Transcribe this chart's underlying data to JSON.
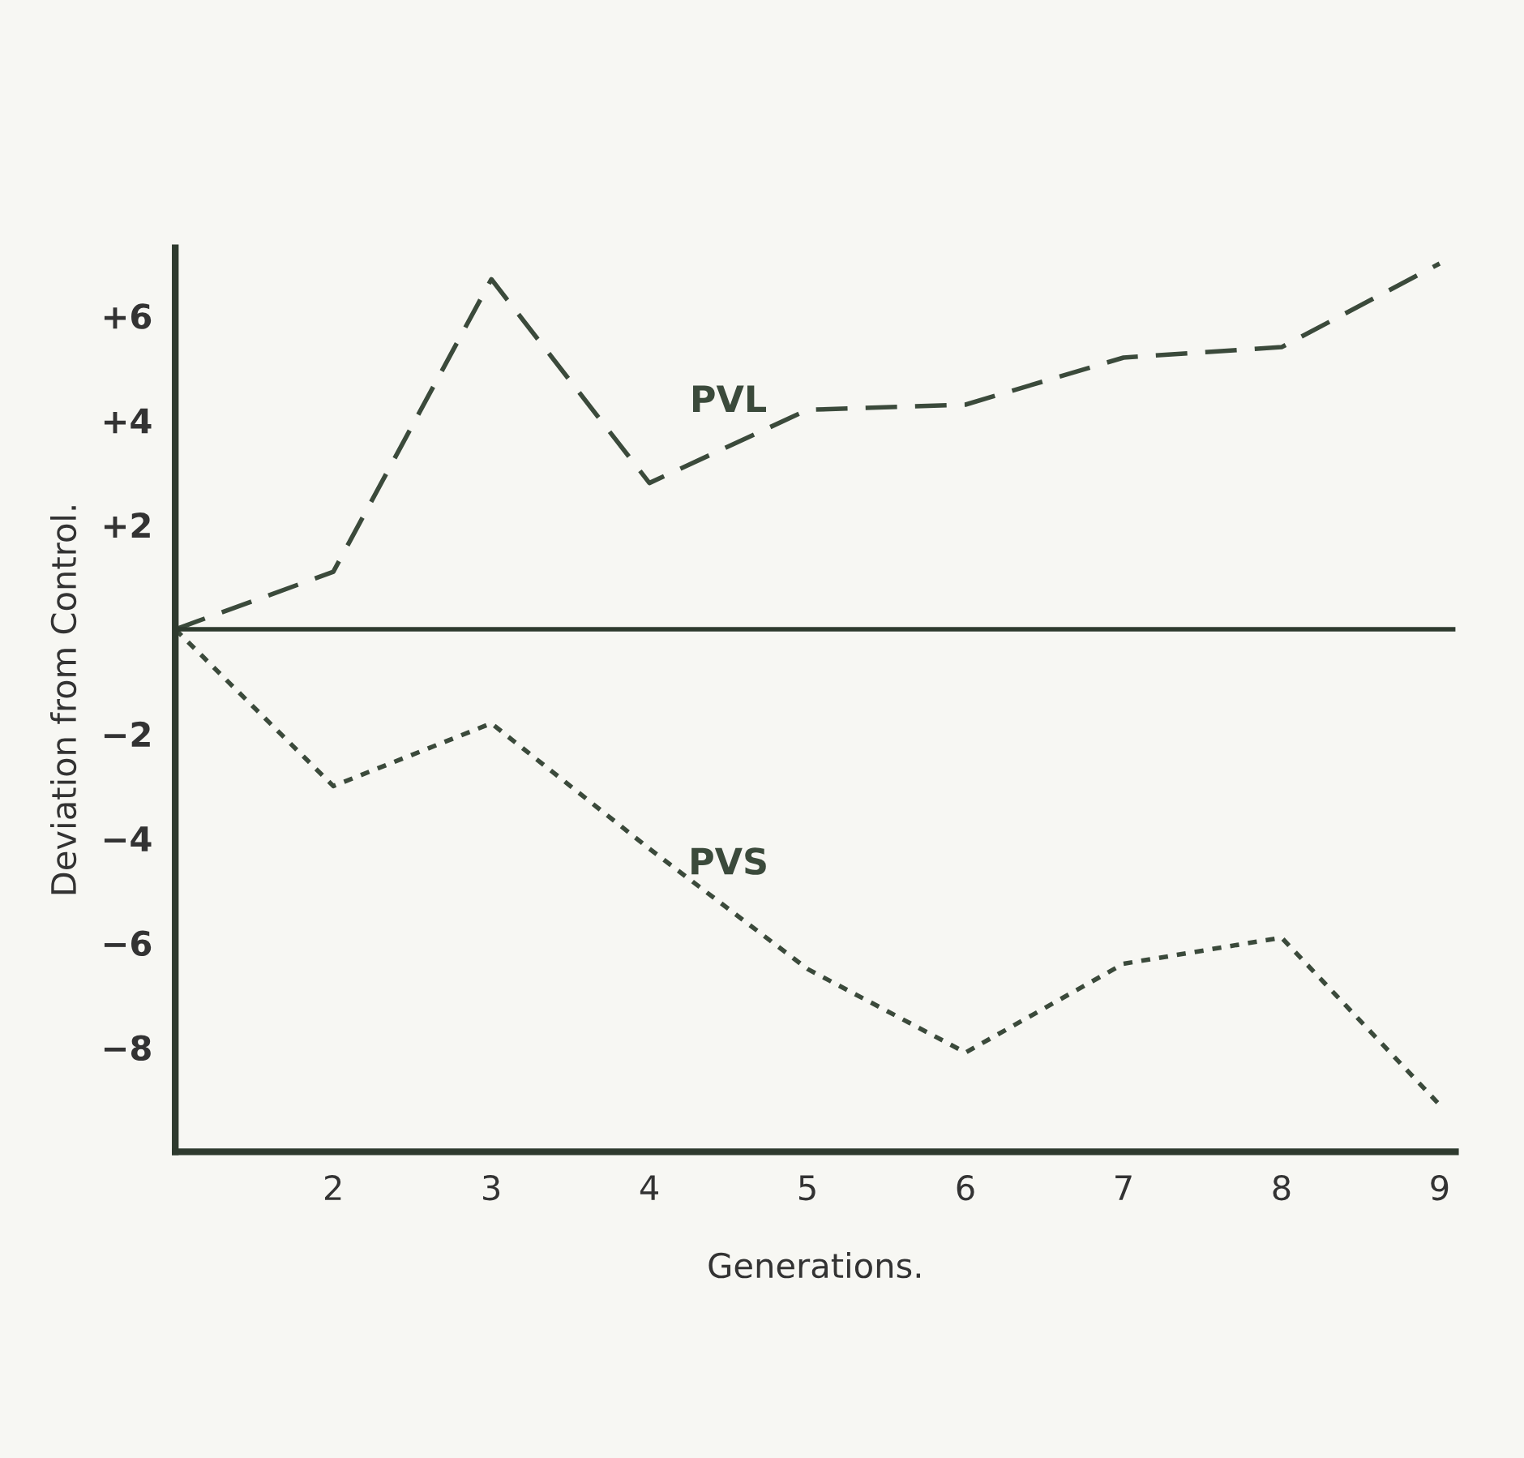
{
  "chart_data": {
    "type": "line",
    "xlabel": "Generations.",
    "ylabel": "Deviation from Control.",
    "x": [
      1,
      2,
      3,
      4,
      5,
      6,
      7,
      8,
      9
    ],
    "series": [
      {
        "name": "PVL",
        "color": "#3b4a3b",
        "line_style": "dashed",
        "values": [
          0,
          1.1,
          6.7,
          2.8,
          4.2,
          4.3,
          5.2,
          5.4,
          7.0
        ]
      },
      {
        "name": "PVS",
        "color": "#3b4a3b",
        "line_style": "dotted",
        "values": [
          0,
          -3.0,
          -1.8,
          -4.2,
          -6.5,
          -8.1,
          -6.4,
          -5.9,
          -9.1
        ]
      }
    ],
    "xlim": [
      1,
      9.1
    ],
    "xticks": [
      2,
      3,
      4,
      5,
      6,
      7,
      8,
      9
    ],
    "ylim": [
      -10,
      7.3
    ],
    "yticks": [
      {
        "value": -8,
        "label": "−8"
      },
      {
        "value": -6,
        "label": "−6"
      },
      {
        "value": -4,
        "label": "−4"
      },
      {
        "value": -2,
        "label": "−2"
      },
      {
        "value": 2,
        "label": "+2"
      },
      {
        "value": 4,
        "label": "+4"
      },
      {
        "value": 6,
        "label": "+6"
      }
    ],
    "ref_lines": [
      {
        "axis": "y",
        "value": 0,
        "color": "#2e3a2e",
        "line_style": "solid"
      }
    ],
    "grid": false,
    "legend": false,
    "marker": "none"
  }
}
